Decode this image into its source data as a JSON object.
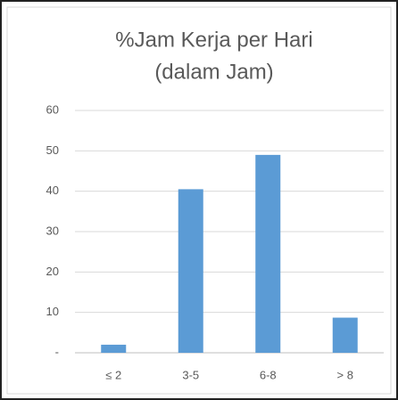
{
  "chart_data": {
    "type": "bar",
    "title": [
      "%Jam Kerja per Hari",
      "(dalam Jam)"
    ],
    "categories": [
      "≤ 2",
      "3-5",
      "6-8",
      "> 8"
    ],
    "values": [
      2,
      40.5,
      49,
      8.7
    ],
    "color": "#5b9bd5",
    "ylim": [
      0,
      60
    ],
    "yticks": [
      {
        "value": 0,
        "label": "-"
      },
      10,
      20,
      30,
      40,
      50,
      60
    ],
    "grid": true
  }
}
